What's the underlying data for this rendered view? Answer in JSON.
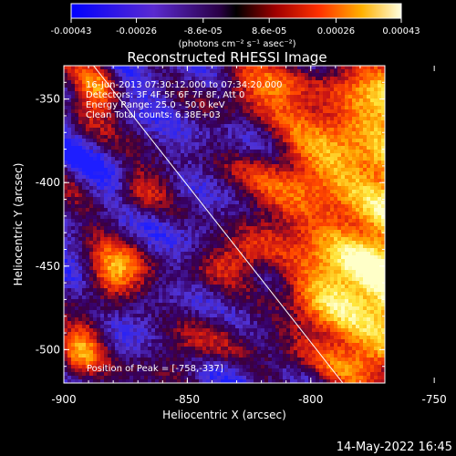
{
  "chart_data": {
    "type": "heatmap",
    "title": "Reconstructed RHESSI Image",
    "xlabel": "Heliocentric X (arcsec)",
    "ylabel": "Heliocentric Y (arcsec)",
    "xlim": [
      -900,
      -770
    ],
    "ylim": [
      -520,
      -330
    ],
    "x_ticks": [
      "-900",
      "-850",
      "-800",
      "-750"
    ],
    "x_tick_values": [
      -900,
      -850,
      -800,
      -750
    ],
    "y_ticks": [
      "-350",
      "-400",
      "-450",
      "-500"
    ],
    "y_tick_values": [
      -350,
      -400,
      -450,
      -500
    ],
    "colorbar": {
      "range": [
        -0.00043,
        0.00043
      ],
      "tick_labels": [
        "-0.00043",
        "-0.00026",
        "-8.6e-05",
        "8.6e-05",
        "0.00026",
        "0.00043"
      ],
      "tick_values": [
        -0.00043,
        -0.00026,
        -8.6e-05,
        8.6e-05,
        0.00026,
        0.00043
      ],
      "units_label": "(photons cm⁻² s⁻¹ asec⁻²)"
    },
    "annotations": [
      "16-Jun-2013 07:30:12.000 to 07:34:20.000",
      "Detectors: 3F 4F 5F 6F 7F 8F, Att 0",
      "Energy Range: 25.0 - 50.0 keV",
      "Clean    Total counts: 6.38E+03"
    ],
    "peak_label": "Position of Peak = [-758,-337]",
    "peak": {
      "x": -758,
      "y": -337
    },
    "limb_line": [
      {
        "x": -888,
        "y": -330
      },
      {
        "x": -787,
        "y": -520
      }
    ],
    "colors": {
      "negative": "#1a22ff",
      "zero": "#2a0045",
      "mid": "#c81414",
      "positive": "#ffff80",
      "limb": "#ffffff"
    }
  },
  "footer": {
    "date": "14-May-2022 16:45"
  }
}
